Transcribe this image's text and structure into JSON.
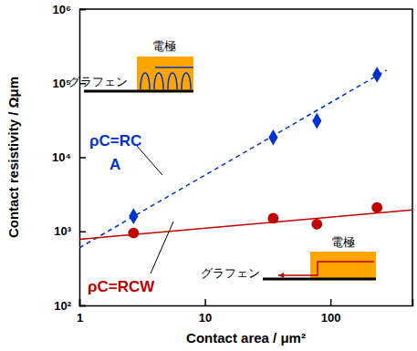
{
  "chart_data": {
    "type": "scatter",
    "x_label": "Contact area / μm²",
    "y_label": "Contact resistivity / Ωμm",
    "log": true,
    "xlim": [
      1,
      450
    ],
    "xticks": [
      1,
      10,
      100
    ],
    "ylim": [
      100,
      1000000
    ],
    "yticks": [
      {
        "value": 100,
        "label": "10²"
      },
      {
        "value": 1000,
        "label": "10³"
      },
      {
        "value": 10000,
        "label": "10⁴"
      },
      {
        "value": 100000,
        "label": "10⁵"
      },
      {
        "value": 1000000,
        "label": "10⁶"
      }
    ],
    "series": [
      {
        "type": "scatter",
        "color": "#0033cc",
        "marker": "diamond",
        "x": [
          2.7,
          35,
          78,
          235
        ],
        "values": [
          1600,
          18500,
          31000,
          130000
        ]
      },
      {
        "type": "line",
        "color": "#0033cc",
        "line_style": "dashed",
        "x": [
          1,
          280
        ],
        "values": [
          600,
          150000
        ]
      },
      {
        "type": "scatter",
        "color": "#c00000",
        "marker": "circle",
        "x": [
          2.7,
          35,
          78,
          235
        ],
        "values": [
          950,
          1500,
          1250,
          2100
        ]
      },
      {
        "type": "line",
        "color": "#c00000",
        "line_style": "solid",
        "x": [
          1,
          450
        ],
        "values": [
          780,
          1950
        ]
      }
    ],
    "annotations": [
      "電極",
      "グラフェン",
      "ρC=RC",
      "A",
      "電極",
      "グラフェン",
      "ρC=RCW"
    ]
  }
}
